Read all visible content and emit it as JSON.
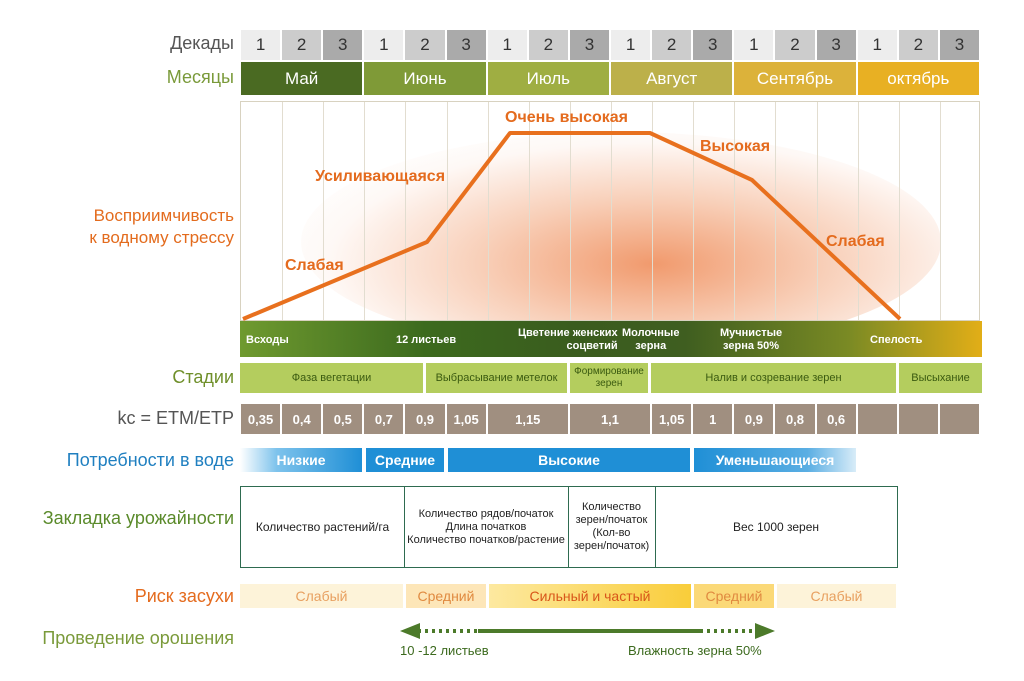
{
  "row_labels": {
    "decades": "Декады",
    "months": "Месяцы",
    "susceptibility": "Восприимчивость\nк водному стрессу",
    "stages": "Стадии",
    "kc": "kc = ETM/ETP",
    "water_needs": "Потребности в воде",
    "yield": "Закладка урожайности",
    "drought_risk": "Риск засухи",
    "irrigation": "Проведение орошения"
  },
  "decades": [
    "1",
    "2",
    "3",
    "1",
    "2",
    "3",
    "1",
    "2",
    "3",
    "1",
    "2",
    "3",
    "1",
    "2",
    "3",
    "1",
    "2",
    "3"
  ],
  "months": [
    {
      "label": "Май",
      "color": "#4a6a22"
    },
    {
      "label": "Июнь",
      "color": "#7f9a37"
    },
    {
      "label": "Июль",
      "color": "#9fae42"
    },
    {
      "label": "Август",
      "color": "#bcb04a"
    },
    {
      "label": "Сентябрь",
      "color": "#dcb23a"
    },
    {
      "label": "октябрь",
      "color": "#e8b023"
    }
  ],
  "curve": {
    "labels": {
      "weak_start": "Слабая",
      "increasing": "Усиливающаяся",
      "very_high": "Очень высокая",
      "high": "Высокая",
      "weak_end": "Слабая"
    },
    "color": "#e8701e"
  },
  "growth_bar": {
    "emergence": "Всходы",
    "leaves12": "12 листьев",
    "flowering": "Цветение женских\nсоцветий",
    "milky": "Молочные\nзерна",
    "mealy": "Мучнистые\nзерна 50%",
    "ripeness": "Спелость"
  },
  "stages": [
    "Фаза вегетации",
    "Выбрасывание метелок",
    "Формирование\nзерен",
    "Налив и созревание зерен",
    "Высыхание"
  ],
  "kc_values": [
    "0,35",
    "0,4",
    "0,5",
    "0,7",
    "0,9",
    "1,05",
    "1,15",
    "1,1",
    "1,05",
    "1",
    "0,9",
    "0,8",
    "0,6",
    "",
    "",
    ""
  ],
  "water_needs": [
    "Низкие",
    "Средние",
    "Высокие",
    "Уменьшающиеся"
  ],
  "yield_components": [
    "Количество растений/га",
    "Количество рядов/початок\nДлина початков\nКоличество початков/растение",
    "Количество\nзерен/початок\n(Кол-во\nзерен/початок)",
    "Вес 1000 зерен"
  ],
  "drought_risk": [
    "Слабый",
    "Средний",
    "Сильный и частый",
    "Средний",
    "Слабый"
  ],
  "irrigation": {
    "start": "10 -12 листьев",
    "end": "Влажность зерна 50%"
  }
}
